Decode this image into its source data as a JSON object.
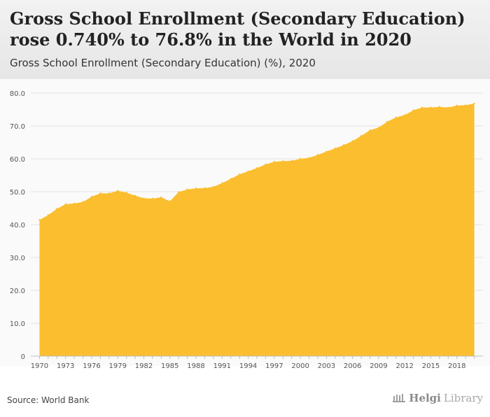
{
  "header": {
    "title": "Gross School Enrollment (Secondary Education) rose 0.740% to 76.8% in the World in 2020",
    "subtitle": "Gross School Enrollment (Secondary Education) (%), 2020"
  },
  "footer": {
    "source": "Source: World Bank",
    "brand_helgi": "Helgi",
    "brand_library": "Library"
  },
  "colors": {
    "area": "#fbbe2f",
    "grid": "#e3e3e3",
    "axis_text": "#555555"
  },
  "chart_data": {
    "type": "area",
    "title": "Gross School Enrollment (Secondary Education) (%), 2020",
    "xlabel": "",
    "ylabel": "",
    "ylim": [
      0,
      80
    ],
    "yticks": [
      0,
      10,
      20,
      30,
      40,
      50,
      60,
      70,
      80
    ],
    "ytick_labels": [
      "0",
      "10.0",
      "20.0",
      "30.0",
      "40.0",
      "50.0",
      "60.0",
      "70.0",
      "80.0"
    ],
    "xticks": [
      1970,
      1973,
      1976,
      1979,
      1982,
      1985,
      1988,
      1991,
      1994,
      1997,
      2000,
      2003,
      2006,
      2009,
      2012,
      2015,
      2018
    ],
    "grid": true,
    "x": [
      1970,
      1971,
      1972,
      1973,
      1974,
      1975,
      1976,
      1977,
      1978,
      1979,
      1980,
      1981,
      1982,
      1983,
      1984,
      1985,
      1986,
      1987,
      1988,
      1989,
      1990,
      1991,
      1992,
      1993,
      1994,
      1995,
      1996,
      1997,
      1998,
      1999,
      2000,
      2001,
      2002,
      2003,
      2004,
      2005,
      2006,
      2007,
      2008,
      2009,
      2010,
      2011,
      2012,
      2013,
      2014,
      2015,
      2016,
      2017,
      2018,
      2019,
      2020
    ],
    "values": [
      41.4,
      42.9,
      44.8,
      46.2,
      46.4,
      46.9,
      48.5,
      49.5,
      49.5,
      50.3,
      49.7,
      48.8,
      48.0,
      47.9,
      48.3,
      47.1,
      49.9,
      50.7,
      51.0,
      51.1,
      51.5,
      52.6,
      53.9,
      55.3,
      56.2,
      57.2,
      58.3,
      59.1,
      59.3,
      59.4,
      60.0,
      60.3,
      61.2,
      62.2,
      63.2,
      64.2,
      65.4,
      67.0,
      68.7,
      69.5,
      71.3,
      72.6,
      73.3,
      74.8,
      75.6,
      75.6,
      75.8,
      75.6,
      76.2,
      76.3,
      76.8
    ]
  }
}
